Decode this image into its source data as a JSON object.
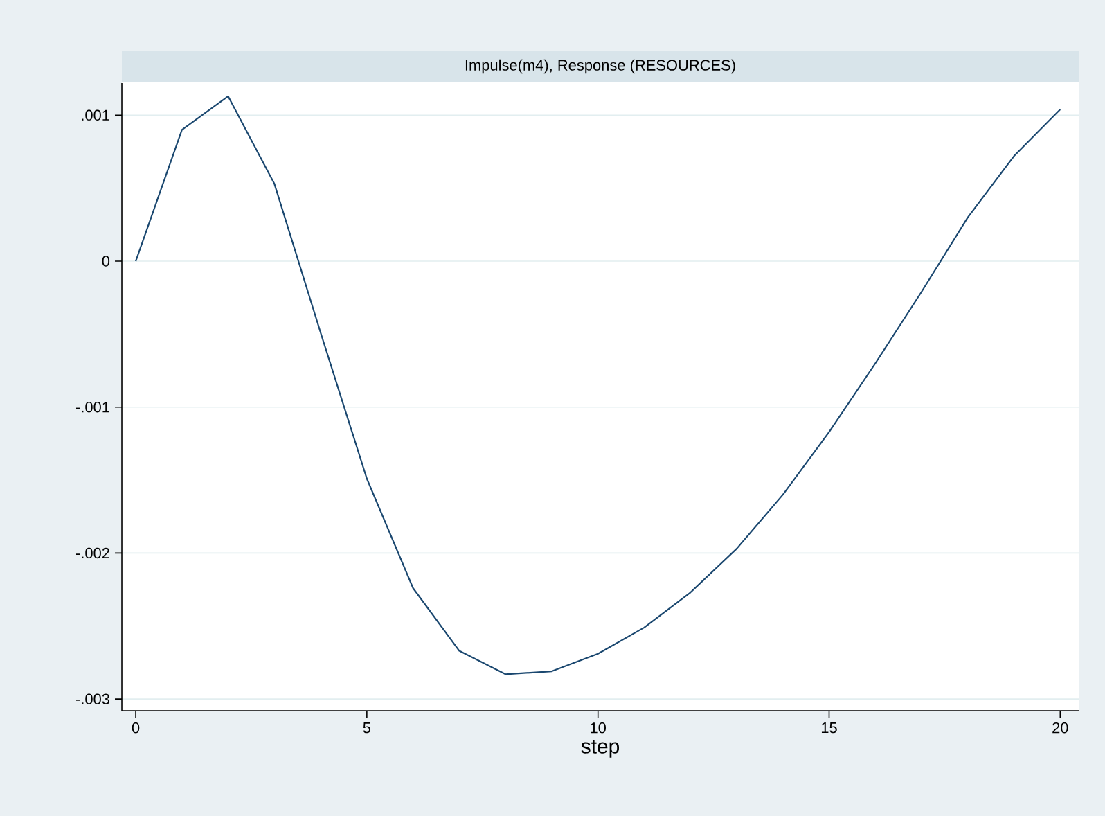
{
  "chart_data": {
    "type": "line",
    "title": "Impulse(m4), Response (RESOURCES)",
    "xlabel": "step",
    "x": [
      0,
      1,
      2,
      3,
      4,
      5,
      6,
      7,
      8,
      9,
      10,
      11,
      12,
      13,
      14,
      15,
      16,
      17,
      18,
      19,
      20
    ],
    "series": [
      {
        "color": "#1a476f",
        "values": [
          0,
          0.0009,
          0.00113,
          0.00053,
          -0.00049,
          -0.00149,
          -0.00224,
          -0.00267,
          -0.00283,
          -0.00281,
          -0.00269,
          -0.00251,
          -0.00227,
          -0.00197,
          -0.0016,
          -0.00117,
          -0.0007,
          -0.00021,
          0.0003,
          0.00072,
          0.00104
        ]
      }
    ],
    "xlim": [
      -0.3,
      20.4
    ],
    "ylim": [
      -0.00308,
      0.00122
    ],
    "xticks": [
      0,
      5,
      10,
      15,
      20
    ],
    "yticks": [
      {
        "value": -0.003,
        "label": "-.003"
      },
      {
        "value": -0.002,
        "label": "-.002"
      },
      {
        "value": -0.001,
        "label": "-.001"
      },
      {
        "value": 0,
        "label": "0"
      },
      {
        "value": 0.001,
        "label": ".001"
      }
    ],
    "grid": "y",
    "line_style": "solid"
  }
}
